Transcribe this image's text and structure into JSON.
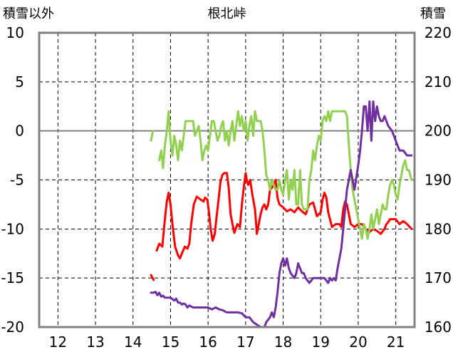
{
  "chart_data": {
    "type": "line",
    "title": "根北峠",
    "y_left_label": "積雪以外",
    "y_right_label": "積雪",
    "y_left_ticks": [
      "10",
      "5",
      "0",
      "-5",
      "-10",
      "-15",
      "-20"
    ],
    "y_right_ticks": [
      "220",
      "210",
      "200",
      "190",
      "180",
      "170",
      "160"
    ],
    "x_ticks": [
      "12",
      "13",
      "14",
      "15",
      "16",
      "17",
      "18",
      "19",
      "20",
      "21"
    ],
    "xlim": [
      11.5,
      21.5
    ],
    "ylim_left": [
      -20,
      10
    ],
    "ylim_right": [
      160,
      220
    ],
    "grid": true,
    "colors": {
      "red": "#ff0000",
      "green": "#92d050",
      "purple": "#7030a0",
      "axis": "#808080",
      "zero_line": "#808080",
      "grid": "#000000"
    },
    "series": [
      {
        "axis": "left",
        "color": "#ff0000",
        "x": [
          14.48,
          14.55
        ],
        "y": [
          -14.7,
          -15.2
        ]
      },
      {
        "axis": "left",
        "color": "#ff0000",
        "x": [
          14.63,
          14.7,
          14.78,
          14.85,
          14.9,
          14.95,
          15.0,
          15.05,
          15.12,
          15.2,
          15.25,
          15.3,
          15.38,
          15.45,
          15.5,
          15.55,
          15.62,
          15.7,
          15.8,
          15.88,
          15.92,
          15.98,
          16.03,
          16.07,
          16.12,
          16.18,
          16.22,
          16.28,
          16.33,
          16.38,
          16.43,
          16.5,
          16.55,
          16.6,
          16.65,
          16.7,
          16.78,
          16.85,
          16.9,
          16.95,
          17.0,
          17.03,
          17.07,
          17.12,
          17.18,
          17.25,
          17.3,
          17.35,
          17.4,
          17.45,
          17.5,
          17.55,
          17.6,
          17.65,
          17.7,
          17.75,
          17.8,
          17.85,
          17.9,
          18.0,
          18.1,
          18.2,
          18.3,
          18.4,
          18.5,
          18.6,
          18.7,
          18.8,
          18.9,
          19.0,
          19.05,
          19.1,
          19.15,
          19.2,
          19.3,
          19.4,
          19.5,
          19.55,
          19.6,
          19.65,
          19.7,
          19.75,
          19.8,
          19.9,
          20.0,
          20.1,
          20.2,
          20.3,
          20.4,
          20.5,
          20.6,
          20.7,
          20.75,
          20.8,
          20.85,
          20.9,
          21.0,
          21.1,
          21.2,
          21.3,
          21.42
        ],
        "y": [
          -12.2,
          -11.5,
          -11.8,
          -9.0,
          -7.2,
          -6.3,
          -7.5,
          -9.5,
          -11.8,
          -12.7,
          -13.0,
          -12.5,
          -11.8,
          -12.0,
          -11.5,
          -9.5,
          -7.5,
          -6.7,
          -7.0,
          -7.2,
          -6.8,
          -7.0,
          -8.5,
          -10.0,
          -11.2,
          -10.5,
          -9.0,
          -7.0,
          -5.2,
          -4.5,
          -4.3,
          -4.3,
          -5.8,
          -8.5,
          -9.5,
          -10.4,
          -9.5,
          -9.8,
          -7.5,
          -5.8,
          -4.3,
          -5.0,
          -5.5,
          -5.0,
          -6.5,
          -8.0,
          -10.5,
          -9.5,
          -8.5,
          -7.8,
          -7.5,
          -8.0,
          -7.5,
          -6.0,
          -5.8,
          -5.5,
          -5.0,
          -6.8,
          -7.5,
          -7.8,
          -8.2,
          -8.0,
          -8.3,
          -7.8,
          -8.2,
          -8.5,
          -7.5,
          -7.3,
          -8.7,
          -8.3,
          -7.0,
          -6.3,
          -6.8,
          -8.3,
          -9.8,
          -9.5,
          -9.5,
          -9.8,
          -8.0,
          -7.2,
          -7.5,
          -8.5,
          -9.5,
          -9.8,
          -9.5,
          -9.5,
          -10.0,
          -10.3,
          -10.0,
          -10.2,
          -10.5,
          -10.0,
          -9.5,
          -9.3,
          -9.0,
          -9.0,
          -9.0,
          -9.5,
          -9.2,
          -9.5,
          -10.0
        ]
      },
      {
        "axis": "left",
        "color": "#92d050",
        "x": [
          14.48,
          14.53
        ],
        "y": [
          -1.0,
          0.0
        ]
      },
      {
        "axis": "left",
        "color": "#92d050",
        "x": [
          14.7,
          14.75,
          14.8,
          14.85,
          14.9,
          14.95,
          15.0,
          15.05,
          15.1,
          15.15,
          15.2,
          15.25,
          15.3,
          15.35,
          15.4,
          15.45,
          15.5,
          15.55,
          15.6,
          15.65,
          15.7,
          15.75,
          15.8,
          15.85,
          15.9,
          15.95,
          16.0,
          16.05,
          16.1,
          16.15,
          16.2,
          16.25,
          16.3,
          16.35,
          16.4,
          16.45,
          16.5,
          16.55,
          16.6,
          16.65,
          16.7,
          16.75,
          16.8,
          16.85,
          16.9,
          16.95,
          17.0,
          17.05,
          17.1,
          17.15,
          17.2,
          17.25,
          17.3,
          17.35,
          17.4,
          17.45,
          17.5,
          17.55,
          17.6,
          17.65,
          17.7,
          17.75,
          17.8,
          17.85,
          17.9,
          17.95,
          18.0,
          18.05,
          18.1,
          18.15,
          18.2,
          18.25,
          18.3,
          18.35,
          18.4,
          18.45,
          18.5,
          18.55,
          18.6,
          18.65,
          18.7,
          18.75,
          18.8,
          18.85,
          18.9,
          18.95,
          19.0,
          19.05,
          19.1,
          19.15,
          19.2,
          19.25,
          19.3,
          19.35,
          19.4,
          19.45,
          19.5,
          19.55,
          19.6,
          19.65,
          19.7,
          19.75,
          19.8,
          19.85,
          19.9,
          19.95,
          20.0,
          20.05,
          20.1,
          20.15,
          20.2,
          20.25,
          20.3,
          20.35,
          20.4,
          20.45,
          20.5,
          20.55,
          20.6,
          20.65,
          20.7,
          20.75,
          20.8,
          20.85,
          20.9,
          20.95,
          21.0,
          21.05,
          21.1,
          21.15,
          21.2,
          21.25,
          21.3,
          21.35,
          21.42
        ],
        "y": [
          -3.0,
          -2.0,
          -3.8,
          -1.5,
          0.0,
          2.0,
          -1.0,
          -2.5,
          -0.5,
          -1.5,
          -3.0,
          -1.0,
          -2.0,
          -0.5,
          1.0,
          1.0,
          1.0,
          1.0,
          1.0,
          -0.5,
          0.0,
          0.5,
          -1.0,
          -3.0,
          -2.0,
          -1.5,
          -2.0,
          -0.5,
          1.0,
          1.0,
          0.0,
          -1.0,
          -0.5,
          0.5,
          1.0,
          -1.0,
          0.0,
          -1.5,
          0.0,
          1.0,
          -1.0,
          0.5,
          2.0,
          0.5,
          1.5,
          0.0,
          1.0,
          -1.0,
          0.5,
          1.5,
          -0.5,
          2.0,
          1.0,
          1.0,
          1.0,
          0.0,
          -2.0,
          -4.5,
          -5.0,
          -6.0,
          -5.0,
          -5.5,
          -6.0,
          -6.0,
          -5.0,
          -6.0,
          -6.5,
          -5.0,
          -4.0,
          -7.0,
          -5.0,
          -6.0,
          -4.0,
          -7.5,
          -7.5,
          -4.0,
          -7.5,
          -8.0,
          -8.0,
          -8.0,
          -5.0,
          -4.0,
          -2.0,
          -3.0,
          -1.5,
          -0.5,
          -1.0,
          1.0,
          1.5,
          1.0,
          2.0,
          1.0,
          2.0,
          2.0,
          2.0,
          2.0,
          2.0,
          2.0,
          2.0,
          2.0,
          1.5,
          -1.5,
          -4.0,
          -6.0,
          -7.0,
          -8.0,
          -9.0,
          -10.0,
          -11.0,
          -9.5,
          -10.0,
          -11.0,
          -10.0,
          -8.5,
          -10.0,
          -9.0,
          -8.0,
          -9.5,
          -8.5,
          -7.5,
          -8.0,
          -8.0,
          -6.5,
          -5.5,
          -5.0,
          -5.5,
          -6.5,
          -7.0,
          -5.5,
          -4.5,
          -3.5,
          -3.0,
          -4.0,
          -4.0,
          -5.0
        ]
      },
      {
        "axis": "right",
        "color": "#7030a0",
        "x": [
          14.48,
          14.55,
          14.6,
          14.65,
          14.7,
          14.75,
          14.8,
          14.85,
          14.9,
          14.95,
          15.0,
          15.1,
          15.15,
          15.2,
          15.25,
          15.3,
          15.35,
          15.4,
          15.45,
          15.5,
          15.6,
          15.7,
          15.8,
          15.9,
          16.0,
          16.1,
          16.2,
          16.3,
          16.4,
          16.5,
          16.6,
          16.7,
          16.8,
          16.9,
          17.0,
          17.1,
          17.2,
          17.3,
          17.4,
          17.5,
          17.55,
          17.6,
          17.65,
          17.7,
          17.75,
          17.8,
          17.85,
          17.9,
          17.95,
          18.0,
          18.05,
          18.1,
          18.15,
          18.2,
          18.3,
          18.35,
          18.4,
          18.45,
          18.5,
          18.55,
          18.6,
          18.7,
          18.8,
          18.9,
          19.0,
          19.1,
          19.15,
          19.2,
          19.25,
          19.3,
          19.35,
          19.4,
          19.45,
          19.5,
          19.55,
          19.6,
          19.65,
          19.7,
          19.8,
          19.9,
          20.0,
          20.05,
          20.1,
          20.15,
          20.2,
          20.25,
          20.3,
          20.35,
          20.4,
          20.45,
          20.5,
          20.55,
          20.6,
          20.65,
          20.7,
          20.8,
          20.9,
          21.0,
          21.1,
          21.2,
          21.3,
          21.42
        ],
        "y": [
          167.0,
          167.0,
          167.2,
          166.5,
          167.0,
          166.2,
          166.4,
          166.0,
          166.0,
          166.0,
          166.0,
          165.4,
          165.8,
          165.0,
          165.0,
          164.6,
          164.8,
          164.6,
          164.0,
          164.4,
          164.0,
          164.0,
          164.0,
          164.0,
          164.0,
          163.6,
          164.0,
          163.6,
          163.4,
          163.0,
          163.0,
          163.0,
          163.0,
          162.8,
          162.0,
          162.0,
          161.0,
          160.5,
          160.0,
          160.0,
          161.0,
          161.5,
          162.0,
          163.0,
          162.0,
          164.0,
          167.0,
          171.0,
          173.0,
          174.0,
          172.5,
          174.0,
          172.0,
          171.0,
          170.0,
          171.0,
          173.0,
          172.0,
          171.0,
          171.0,
          170.0,
          169.0,
          170.0,
          170.0,
          170.0,
          170.0,
          169.5,
          169.0,
          170.0,
          169.5,
          170.0,
          169.5,
          172.0,
          174.0,
          176.0,
          180.0,
          184.0,
          188.0,
          192.0,
          188.0,
          193.0,
          196.0,
          200.0,
          205.0,
          205.0,
          200.0,
          206.0,
          198.0,
          206.0,
          202.0,
          205.0,
          203.0,
          202.0,
          202.0,
          203.0,
          201.0,
          200.0,
          198.0,
          196.0,
          196.0,
          195.0,
          195.0
        ]
      }
    ]
  }
}
